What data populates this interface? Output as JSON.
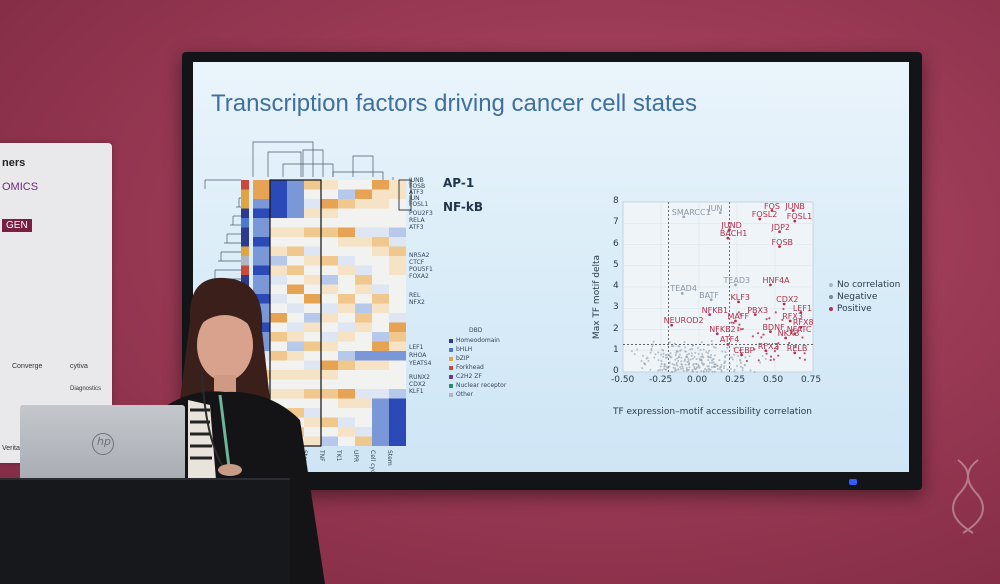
{
  "slide": {
    "title": "Transcription factors driving cancer cell states",
    "heatmap": {
      "group_labels": [
        "AP-1",
        "NF-kB"
      ],
      "row_labels_top": [
        "JUNB",
        "FOSB",
        "ATF3",
        "JUN",
        "FOSL1"
      ],
      "row_labels_mid1": [
        "POU2F3",
        "RELA",
        "ATF3"
      ],
      "row_labels_mid2": [
        "NR5A2",
        "CTCF",
        "POU5F1",
        "FOXA2"
      ],
      "row_labels_mid3": [
        "REL",
        "NFX2"
      ],
      "row_labels_low": [
        "LEF1",
        "RHOA",
        "YEATS4"
      ],
      "row_labels_bottom": [
        "RUNX2",
        "CDX2",
        "KLF1"
      ],
      "col_labels": [
        "Hypoxia",
        "Intermediate",
        "OxStress",
        "Stem HOTAIR",
        "TNF",
        "TK1",
        "UPR",
        "Cell cycle",
        "Stem"
      ],
      "legend_title": "DBD",
      "legend": [
        {
          "label": "Homeodomain",
          "color": "#2e3a8c"
        },
        {
          "label": "bHLH",
          "color": "#4a7bd0"
        },
        {
          "label": "bZIP",
          "color": "#e0a542"
        },
        {
          "label": "Forkhead",
          "color": "#c94a3a"
        },
        {
          "label": "C2H2 ZF",
          "color": "#5f3c8f"
        },
        {
          "label": "Nuclear receptor",
          "color": "#2a8a6a"
        },
        {
          "label": "Other",
          "color": "#b0b7c0"
        }
      ]
    },
    "scatter": {
      "xlabel": "TF expression–motif accessibility correlation",
      "ylabel": "Max TF motif delta",
      "x_ticks": [
        "-0.50",
        "-0.25",
        "0.00",
        "0.25",
        "0.50",
        "0.75"
      ],
      "y_ticks": [
        "0",
        "1",
        "2",
        "3",
        "4",
        "5",
        "6",
        "7",
        "8"
      ],
      "xlim": [
        -0.5,
        0.75
      ],
      "ylim": [
        0,
        8
      ],
      "legend": [
        {
          "label": "No correlation",
          "color": "#a8b2bd"
        },
        {
          "label": "Negative",
          "color": "#7a8590"
        },
        {
          "label": "Positive",
          "color": "#b4304a"
        }
      ],
      "positive_labels": [
        {
          "text": "FOS",
          "x": 0.48,
          "y": 7.6
        },
        {
          "text": "JUNB",
          "x": 0.62,
          "y": 7.6
        },
        {
          "text": "FOSL2",
          "x": 0.4,
          "y": 7.2
        },
        {
          "text": "FOSL1",
          "x": 0.63,
          "y": 7.1
        },
        {
          "text": "JUND",
          "x": 0.2,
          "y": 6.7
        },
        {
          "text": "JDP2",
          "x": 0.53,
          "y": 6.6
        },
        {
          "text": "BACH1",
          "x": 0.19,
          "y": 6.3
        },
        {
          "text": "FOSB",
          "x": 0.53,
          "y": 5.9
        },
        {
          "text": "HNF4A",
          "x": 0.47,
          "y": 4.1
        },
        {
          "text": "KLF3",
          "x": 0.26,
          "y": 3.3
        },
        {
          "text": "CDX2",
          "x": 0.56,
          "y": 3.2
        },
        {
          "text": "NFKB1",
          "x": 0.07,
          "y": 2.7
        },
        {
          "text": "PBX3",
          "x": 0.37,
          "y": 2.7
        },
        {
          "text": "LEF1",
          "x": 0.67,
          "y": 2.8
        },
        {
          "text": "MAFF",
          "x": 0.24,
          "y": 2.4
        },
        {
          "text": "RFX3",
          "x": 0.6,
          "y": 2.4
        },
        {
          "text": "NEUROD2",
          "x": -0.18,
          "y": 2.2
        },
        {
          "text": "RFX8",
          "x": 0.67,
          "y": 2.1
        },
        {
          "text": "BDNF",
          "x": 0.47,
          "y": 1.9
        },
        {
          "text": "NFKB2",
          "x": 0.12,
          "y": 1.8
        },
        {
          "text": "NFATC",
          "x": 0.63,
          "y": 1.8
        },
        {
          "text": "NKX3",
          "x": 0.57,
          "y": 1.6
        },
        {
          "text": "ATF4",
          "x": 0.19,
          "y": 1.3
        },
        {
          "text": "RFX2",
          "x": 0.44,
          "y": 1.0
        },
        {
          "text": "RELB",
          "x": 0.63,
          "y": 0.9
        },
        {
          "text": "CEBP",
          "x": 0.28,
          "y": 0.8
        }
      ],
      "nocorr_labels": [
        {
          "text": "SMARCC1",
          "x": -0.1,
          "y": 7.3
        },
        {
          "text": "JUN",
          "x": 0.14,
          "y": 7.5
        },
        {
          "text": "TEAD4",
          "x": -0.11,
          "y": 3.7
        },
        {
          "text": "BATF",
          "x": 0.08,
          "y": 3.4
        },
        {
          "text": "TEAD3",
          "x": 0.24,
          "y": 4.1
        }
      ]
    }
  },
  "banner": {
    "heading": "ners",
    "logos": [
      "OMICS",
      "GEN",
      "Converge",
      "cytiva",
      "Diagnostics",
      "Veritas"
    ]
  },
  "laptop": {
    "brand_mark": "hp"
  },
  "colors": {
    "wall": "#9b3a55",
    "screen": "#dcedf8",
    "title": "#3f6f9e",
    "positive": "#b4304a"
  }
}
